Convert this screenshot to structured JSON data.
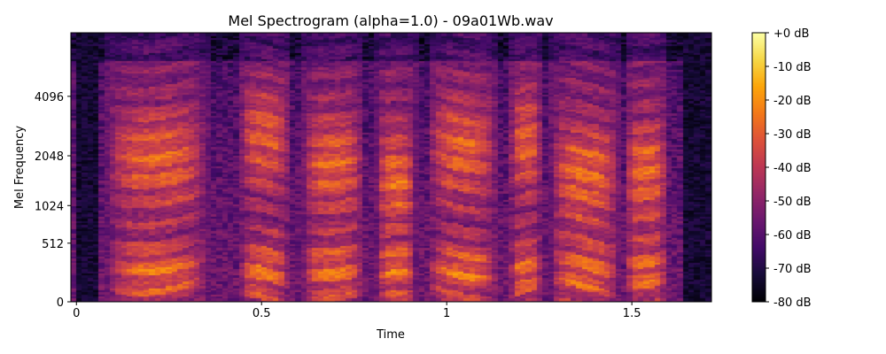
{
  "chart_data": {
    "type": "heatmap",
    "title": "Mel Spectrogram (alpha=1.0) - 09a01Wb.wav",
    "xlabel": "Time",
    "ylabel": "Mel Frequency",
    "xlim": [
      -0.015,
      1.715
    ],
    "x_ticks": [
      {
        "value": 0,
        "label": "0"
      },
      {
        "value": 0.5,
        "label": "0.5"
      },
      {
        "value": 1,
        "label": "1"
      },
      {
        "value": 1.5,
        "label": "1.5"
      }
    ],
    "y_scale": "mel",
    "y_ticks": [
      {
        "value": 0,
        "label": "0"
      },
      {
        "value": 512,
        "label": "512"
      },
      {
        "value": 1024,
        "label": "1024"
      },
      {
        "value": 2048,
        "label": "2048"
      },
      {
        "value": 4096,
        "label": "4096"
      }
    ],
    "colormap": "inferno",
    "colorbar": {
      "range_db": [
        -80,
        0
      ],
      "ticks": [
        {
          "value": 0,
          "label": "+0 dB"
        },
        {
          "value": -10,
          "label": "-10 dB"
        },
        {
          "value": -20,
          "label": "-20 dB"
        },
        {
          "value": -30,
          "label": "-30 dB"
        },
        {
          "value": -40,
          "label": "-40 dB"
        },
        {
          "value": -50,
          "label": "-50 dB"
        },
        {
          "value": -60,
          "label": "-60 dB"
        },
        {
          "value": -70,
          "label": "-70 dB"
        },
        {
          "value": -80,
          "label": "-80 dB"
        }
      ]
    },
    "grid": false,
    "time_frames_approx": 114,
    "mel_bins_approx": 128,
    "voiced_segments_s": [
      [
        0.08,
        0.36
      ],
      [
        0.44,
        0.58
      ],
      [
        0.61,
        0.78
      ],
      [
        0.81,
        0.92
      ],
      [
        0.95,
        1.14
      ],
      [
        1.17,
        1.26
      ],
      [
        1.28,
        1.47
      ],
      [
        1.48,
        1.6
      ]
    ],
    "silence_segments_s": [
      [
        0.0,
        0.06
      ],
      [
        1.64,
        1.72
      ]
    ]
  }
}
